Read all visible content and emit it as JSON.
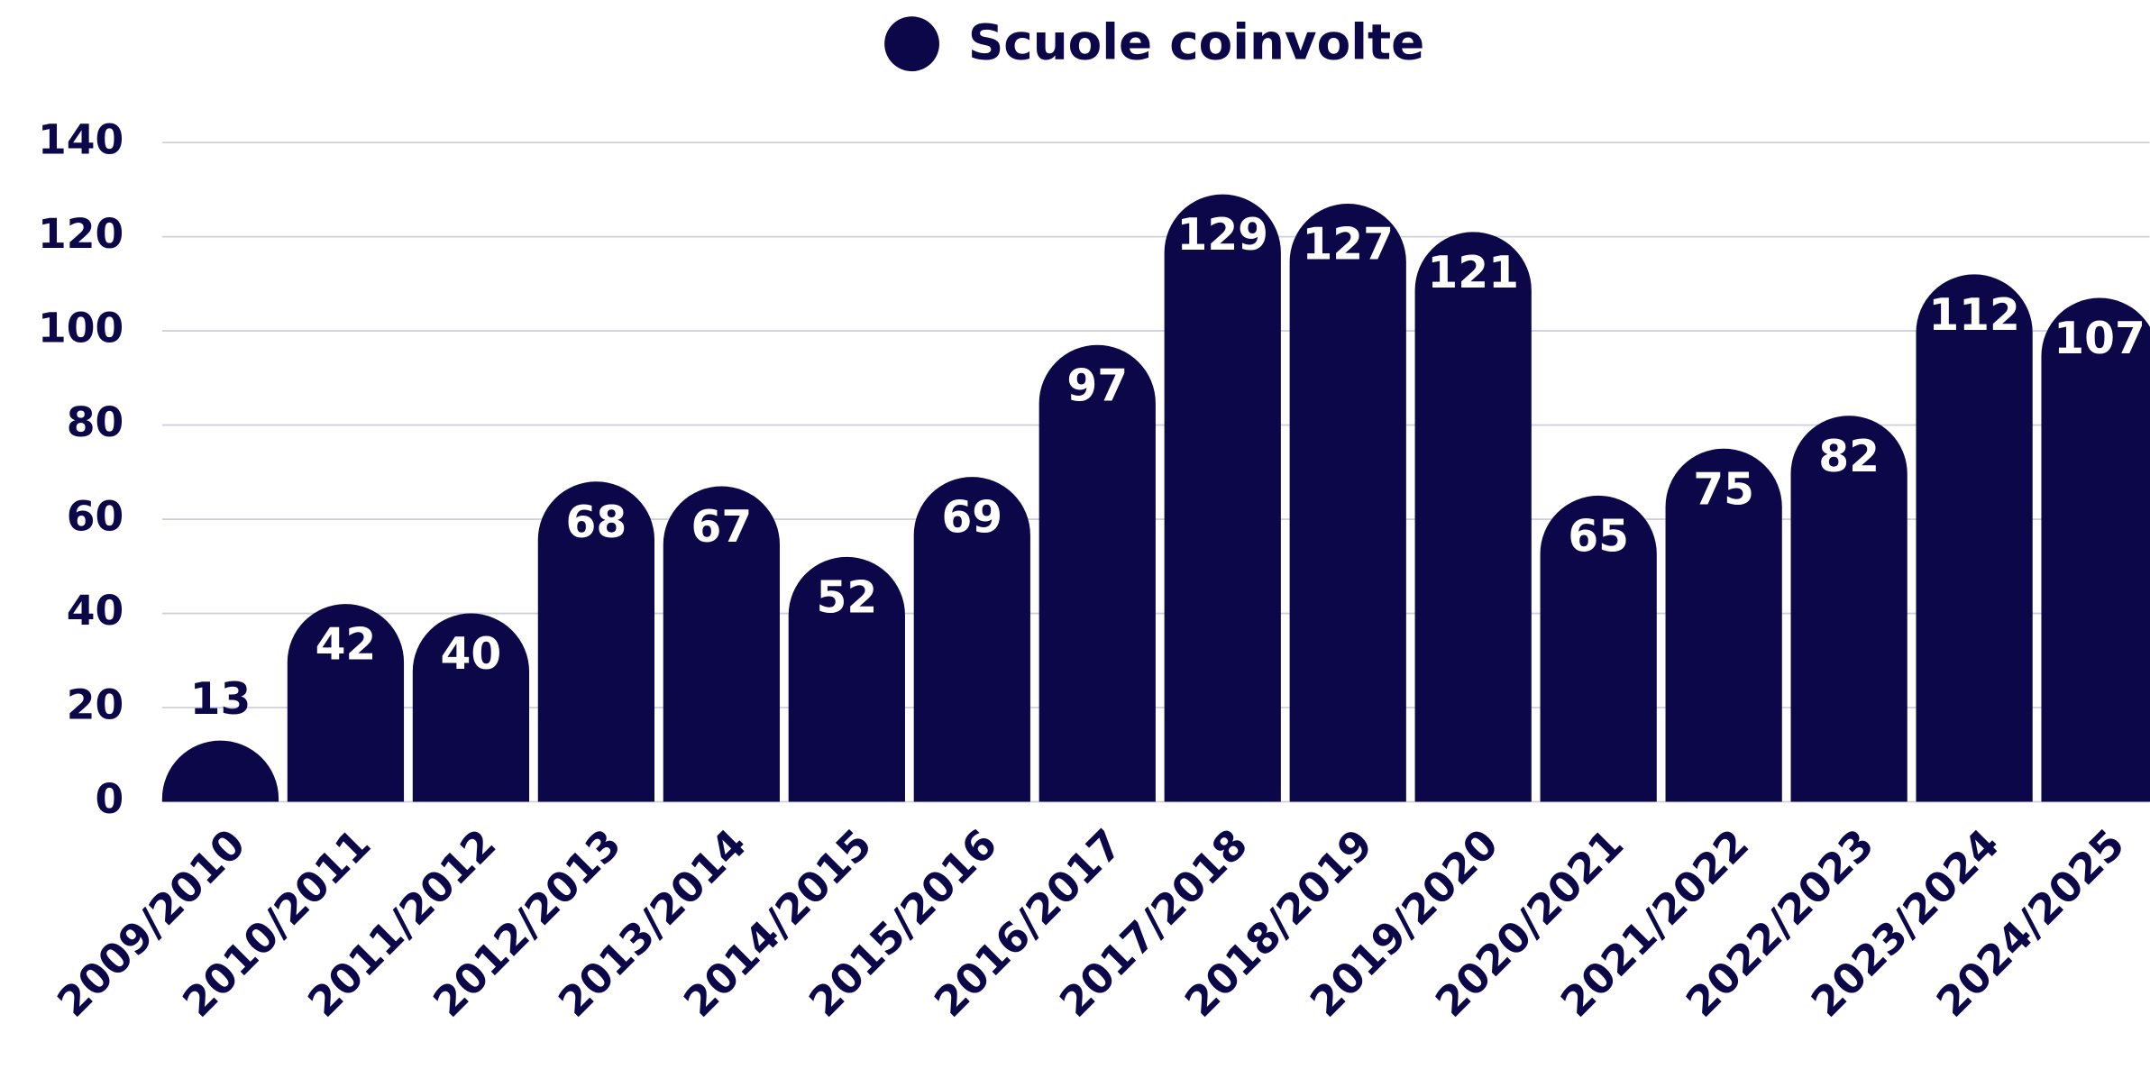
{
  "chart_data": {
    "type": "bar",
    "categories": [
      "2009/2010",
      "2010/2011",
      "2011/2012",
      "2012/2013",
      "2013/2014",
      "2014/2015",
      "2015/2016",
      "2016/2017",
      "2017/2018",
      "2018/2019",
      "2019/2020",
      "2020/2021",
      "2021/2022",
      "2022/2023",
      "2023/2024",
      "2024/2025"
    ],
    "series": [
      {
        "name": "Scuole coinvolte",
        "color": "#0b0748",
        "values": [
          13,
          42,
          40,
          68,
          67,
          52,
          69,
          97,
          129,
          127,
          121,
          65,
          75,
          82,
          112,
          107
        ]
      }
    ],
    "ylim": [
      0,
      140
    ],
    "yticks": [
      0,
      20,
      40,
      60,
      80,
      100,
      120,
      140
    ],
    "grid": true,
    "legend": "top"
  }
}
